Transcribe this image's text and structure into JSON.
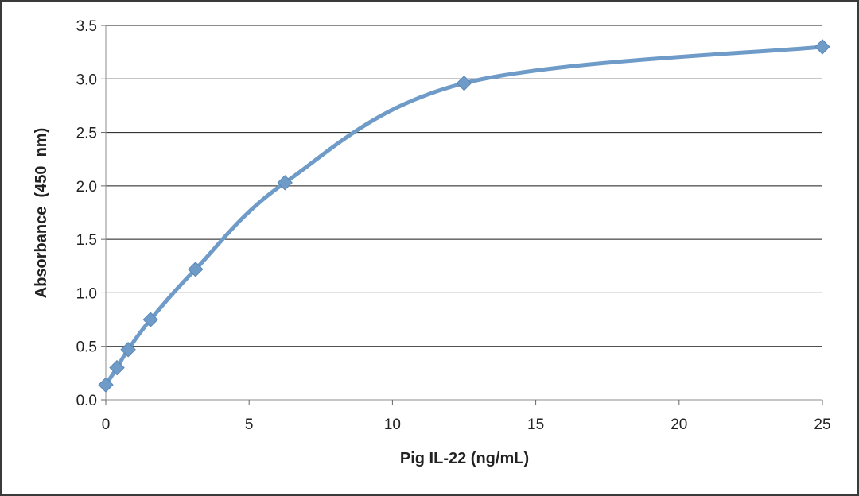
{
  "chart_data": {
    "type": "line",
    "title": "",
    "xlabel": "Pig IL-22 (ng/mL)",
    "ylabel": "Absorbance  (450  nm)",
    "xlim": [
      0,
      25
    ],
    "ylim": [
      0,
      3.5
    ],
    "x_ticks": [
      "0",
      "5",
      "10",
      "15",
      "20",
      "25"
    ],
    "y_ticks": [
      "0.0",
      "0.5",
      "1.0",
      "1.5",
      "2.0",
      "2.5",
      "3.0",
      "3.5"
    ],
    "grid": "horizontal",
    "legend": "none",
    "line_color": "#6f9bc8",
    "marker": "diamond",
    "smooth": true,
    "series": [
      {
        "x": [
          0,
          0.39,
          0.78,
          1.56,
          3.13,
          6.25,
          12.5,
          25
        ],
        "y": [
          0.14,
          0.3,
          0.47,
          0.75,
          1.22,
          2.03,
          2.96,
          3.3
        ]
      }
    ]
  }
}
